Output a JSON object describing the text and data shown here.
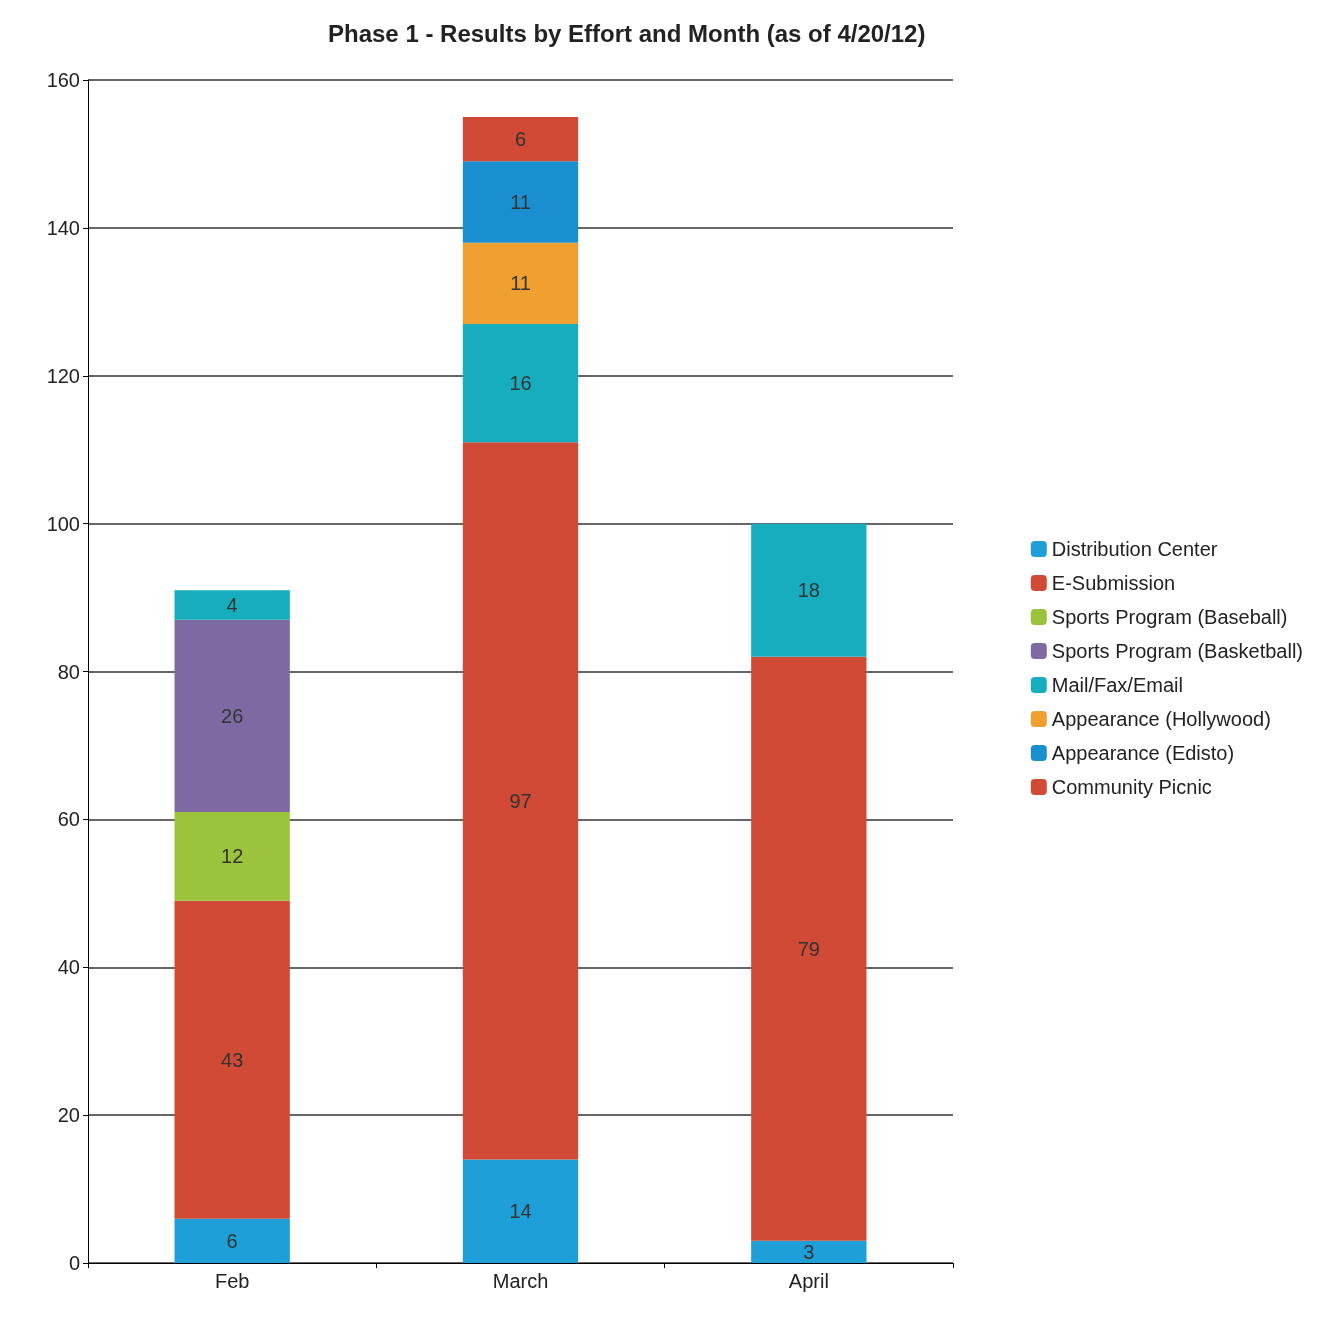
{
  "chart_data": {
    "type": "bar",
    "title": "Phase 1 - Results by Effort and Month (as of 4/20/12)",
    "categories": [
      "Feb",
      "March",
      "April"
    ],
    "stacked": true,
    "data_labels": true,
    "grid": "y",
    "legend": "right",
    "ylim": [
      0,
      160
    ],
    "yticks": [
      0,
      20,
      40,
      60,
      80,
      100,
      120,
      140,
      160
    ],
    "series": [
      {
        "name": "Distribution Center",
        "color": "#1f9fd8",
        "values": [
          6,
          14,
          3
        ]
      },
      {
        "name": "E-Submission",
        "color": "#d04a35",
        "values": [
          43,
          97,
          79
        ]
      },
      {
        "name": "Sports Program (Baseball)",
        "color": "#9bc33c",
        "values": [
          12,
          null,
          null
        ]
      },
      {
        "name": "Sports Program (Basketball)",
        "color": "#7e6aa3",
        "values": [
          26,
          null,
          null
        ]
      },
      {
        "name": "Mail/Fax/Email",
        "color": "#16aebf",
        "values": [
          4,
          16,
          18
        ]
      },
      {
        "name": "Appearance (Hollywood)",
        "color": "#f0a030",
        "values": [
          null,
          11,
          null
        ]
      },
      {
        "name": "Appearance (Edisto)",
        "color": "#1a8fd0",
        "values": [
          null,
          11,
          null
        ]
      },
      {
        "name": "Community Picnic",
        "color": "#d04a35",
        "values": [
          null,
          6,
          null
        ]
      }
    ]
  }
}
